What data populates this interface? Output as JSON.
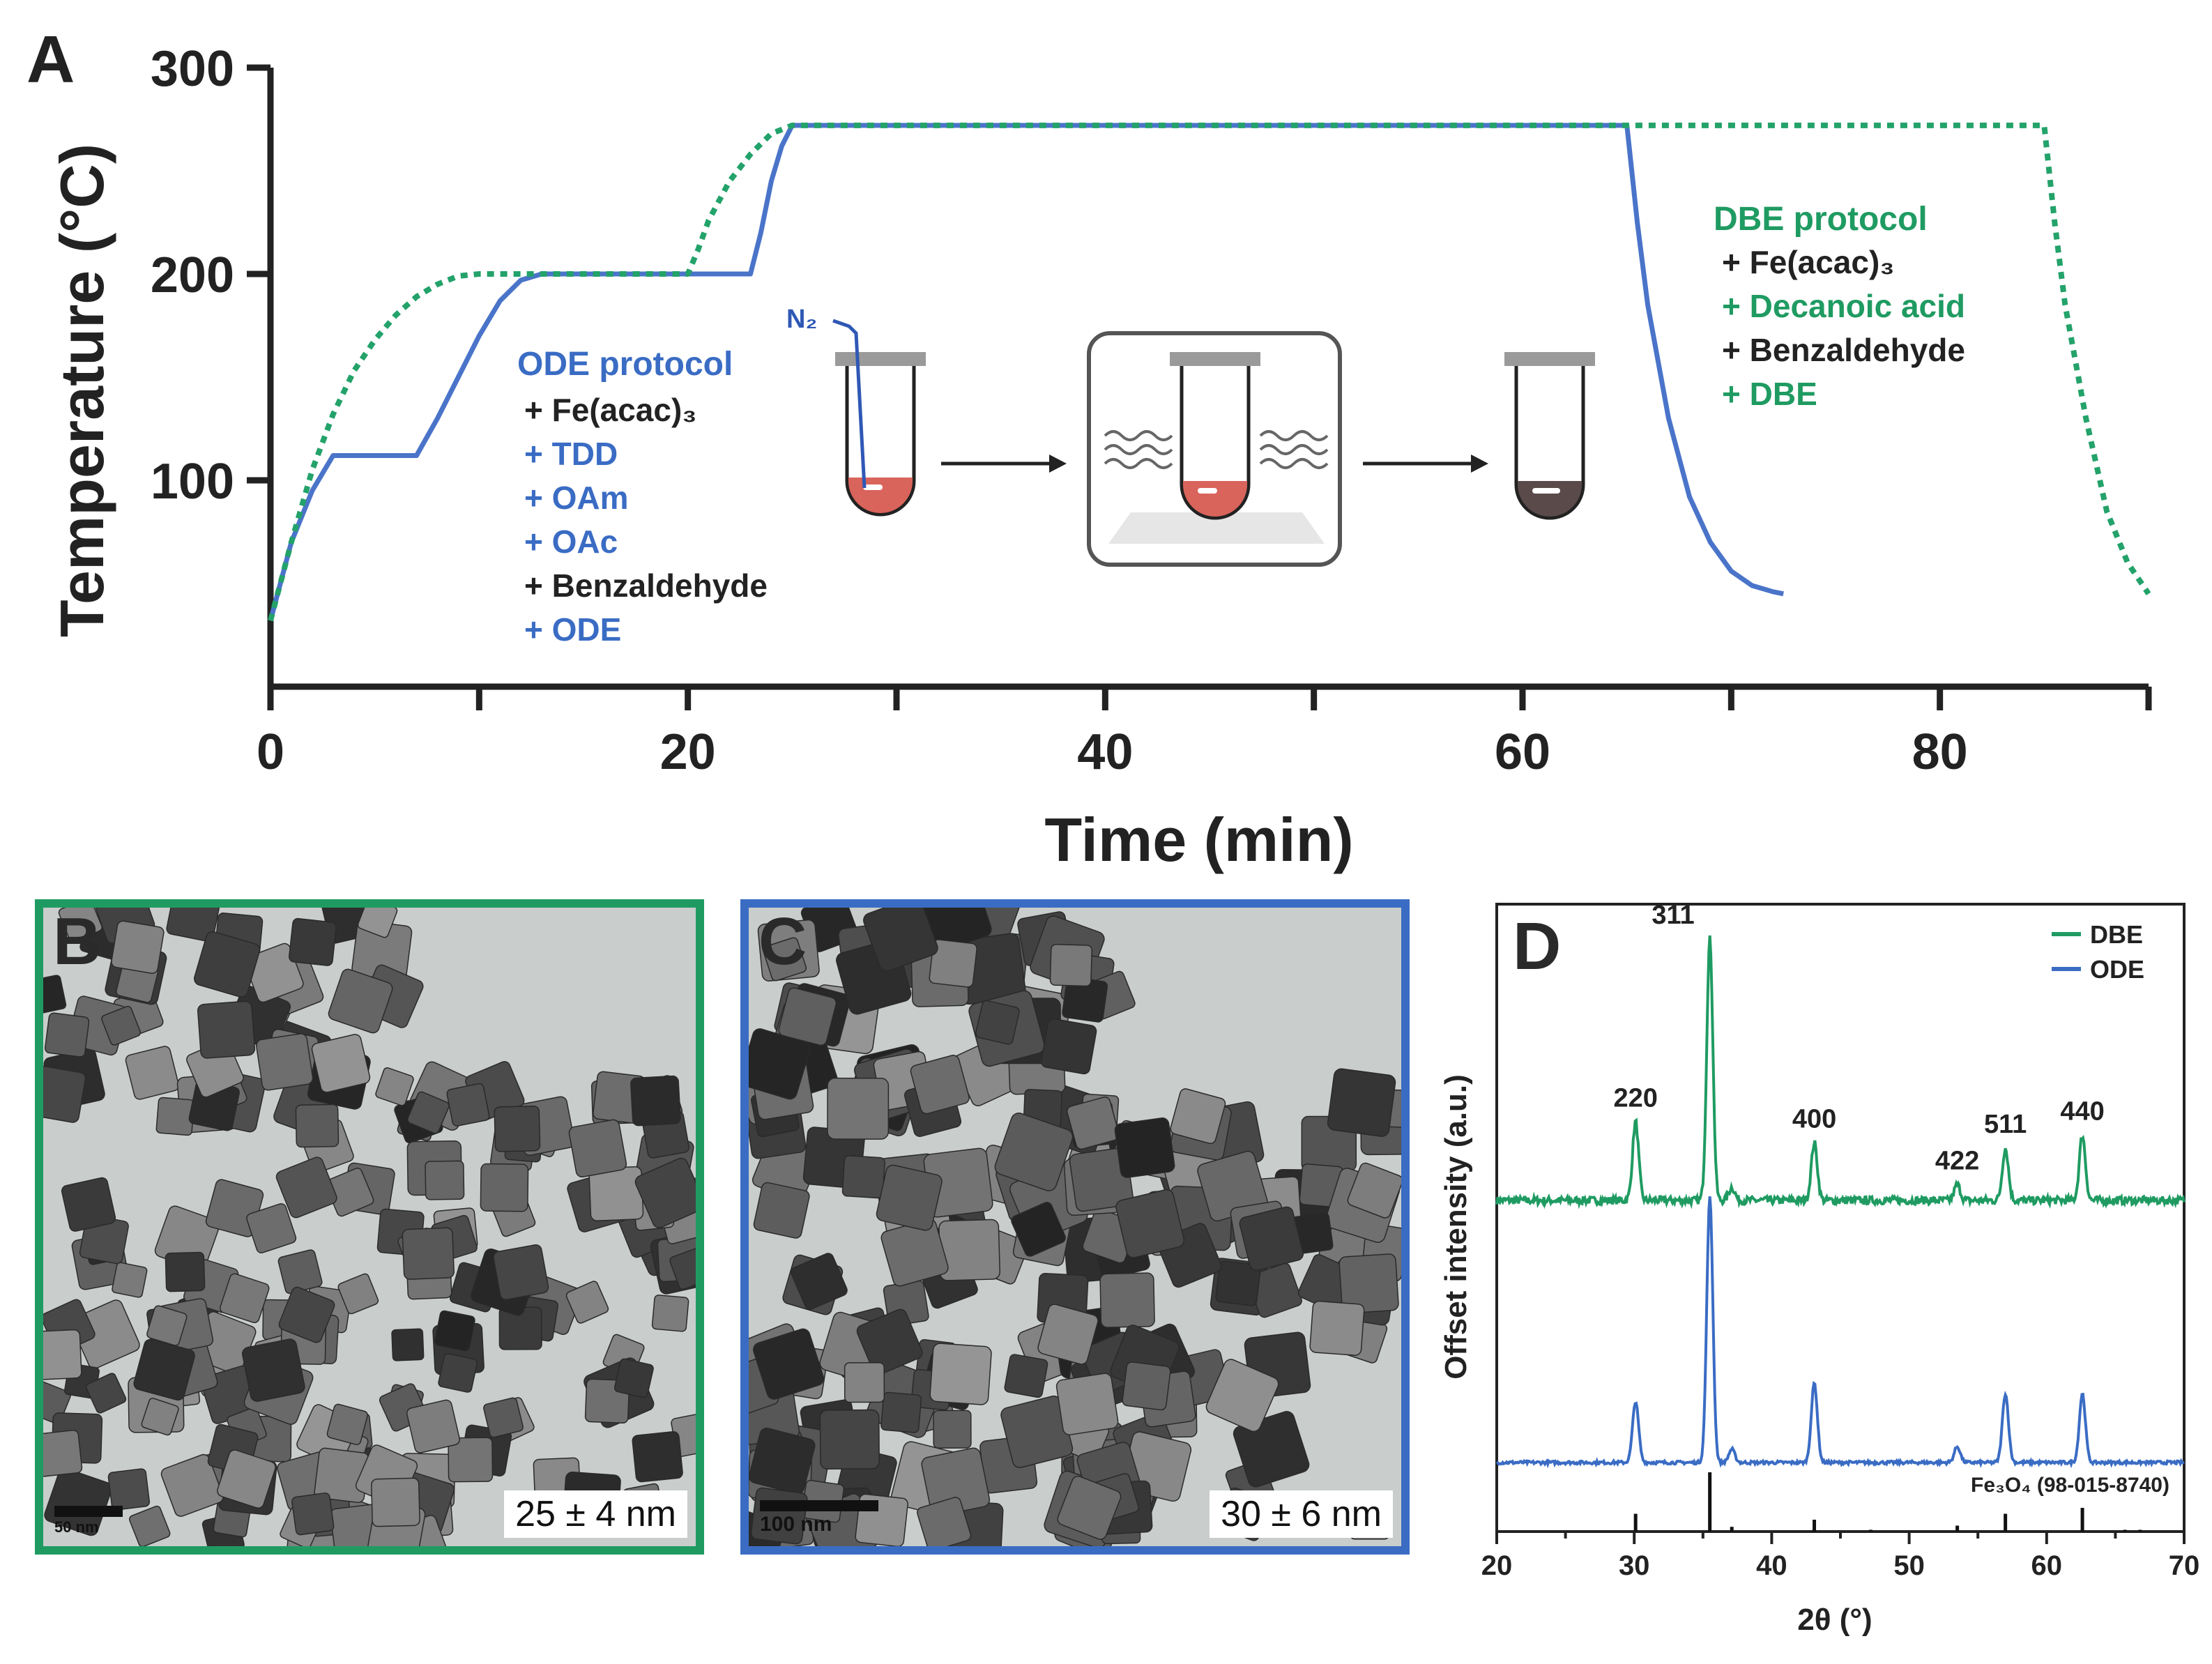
{
  "panels": {
    "A": "A",
    "B": "B",
    "C": "C",
    "D": "D"
  },
  "chart_data": [
    {
      "panel": "A",
      "type": "line",
      "xlabel": "Time (min)",
      "ylabel": "Temperature (°C)",
      "xlim": [
        0,
        90
      ],
      "ylim": [
        0,
        300
      ],
      "xticks": [
        0,
        20,
        40,
        60,
        80
      ],
      "yticks": [
        100,
        200,
        300
      ],
      "series": [
        {
          "color": "#4a74c9",
          "dash": "solid",
          "x": [
            0,
            1,
            2,
            3,
            7,
            8,
            9,
            10,
            11,
            12,
            13,
            23,
            23.5,
            24,
            24.5,
            25,
            65,
            65.5,
            66,
            67,
            68,
            69,
            70,
            71,
            72,
            72.5
          ],
          "y": [
            32,
            70,
            95,
            112,
            112,
            130,
            150,
            170,
            187,
            197,
            200,
            200,
            220,
            245,
            262,
            272,
            272,
            225,
            185,
            130,
            92,
            70,
            56,
            49,
            46,
            45
          ]
        },
        {
          "color": "#23a26a",
          "dash": "dashed",
          "x": [
            0,
            1,
            2,
            3,
            4,
            5,
            6,
            7,
            8,
            9,
            10,
            20,
            20.5,
            21,
            22,
            23,
            24,
            25,
            85,
            85.5,
            86,
            87,
            88,
            89,
            90
          ],
          "y": [
            32,
            70,
            105,
            132,
            153,
            168,
            180,
            189,
            195,
            199,
            200,
            200,
            212,
            226,
            245,
            258,
            268,
            272,
            272,
            225,
            185,
            130,
            85,
            60,
            45
          ]
        }
      ],
      "annotations": {
        "ode_title": "ODE protocol",
        "ode_items": [
          {
            "text": "+ Fe(acac)₃",
            "color": "#222222"
          },
          {
            "text": "+ TDD",
            "color": "#3a6cc4"
          },
          {
            "text": "+ OAm",
            "color": "#3a6cc4"
          },
          {
            "text": "+ OAc",
            "color": "#3a6cc4"
          },
          {
            "text": "+ Benzaldehyde",
            "color": "#222222"
          },
          {
            "text": "+ ODE",
            "color": "#3a6cc4"
          }
        ],
        "dbe_title": "DBE protocol",
        "dbe_items": [
          {
            "text": "+ Fe(acac)₃",
            "color": "#222222"
          },
          {
            "text": "+ Decanoic acid",
            "color": "#1f9b62"
          },
          {
            "text": "+ Benzaldehyde",
            "color": "#222222"
          },
          {
            "text": "+ DBE",
            "color": "#1f9b62"
          }
        ],
        "n2_label": "N₂"
      }
    },
    {
      "panel": "D",
      "type": "line",
      "xlabel": "2θ (°)",
      "ylabel": "Offset intensity (a.u.)",
      "xlim": [
        20,
        70
      ],
      "xticks": [
        20,
        30,
        40,
        50,
        60,
        70
      ],
      "legend": {
        "position": "top-right",
        "entries": [
          {
            "name": "DBE",
            "color": "#1f9b62"
          },
          {
            "name": "ODE",
            "color": "#3a6cc4"
          }
        ]
      },
      "peaks": [
        {
          "pos": 30.1,
          "dbe": 0.3,
          "ode": 0.23,
          "label": "220"
        },
        {
          "pos": 35.5,
          "dbe": 1.0,
          "ode": 1.0,
          "label": "311"
        },
        {
          "pos": 37.1,
          "dbe": 0.05,
          "ode": 0.05,
          "label": ""
        },
        {
          "pos": 43.1,
          "dbe": 0.22,
          "ode": 0.3,
          "label": "400"
        },
        {
          "pos": 53.5,
          "dbe": 0.06,
          "ode": 0.06,
          "label": "422"
        },
        {
          "pos": 57.0,
          "dbe": 0.2,
          "ode": 0.26,
          "label": "511"
        },
        {
          "pos": 62.6,
          "dbe": 0.25,
          "ode": 0.26,
          "label": "440"
        }
      ],
      "reference": {
        "label": "Fe₃O₄ (98-015-8740)",
        "sticks": [
          {
            "pos": 18.3,
            "h": 0.08
          },
          {
            "pos": 30.1,
            "h": 0.3
          },
          {
            "pos": 35.5,
            "h": 1.0
          },
          {
            "pos": 37.1,
            "h": 0.08
          },
          {
            "pos": 43.1,
            "h": 0.2
          },
          {
            "pos": 47.2,
            "h": 0.03
          },
          {
            "pos": 53.5,
            "h": 0.1
          },
          {
            "pos": 57.0,
            "h": 0.3
          },
          {
            "pos": 62.6,
            "h": 0.4
          },
          {
            "pos": 65.7,
            "h": 0.03
          },
          {
            "pos": 66.8,
            "h": 0.03
          }
        ]
      }
    }
  ],
  "tem_b": {
    "size": "25 ± 4 nm",
    "scale": "50 nm",
    "border": "#1f9b62"
  },
  "tem_c": {
    "size": "30 ± 6 nm",
    "scale": "100 nm",
    "border": "#3a6cc4"
  }
}
